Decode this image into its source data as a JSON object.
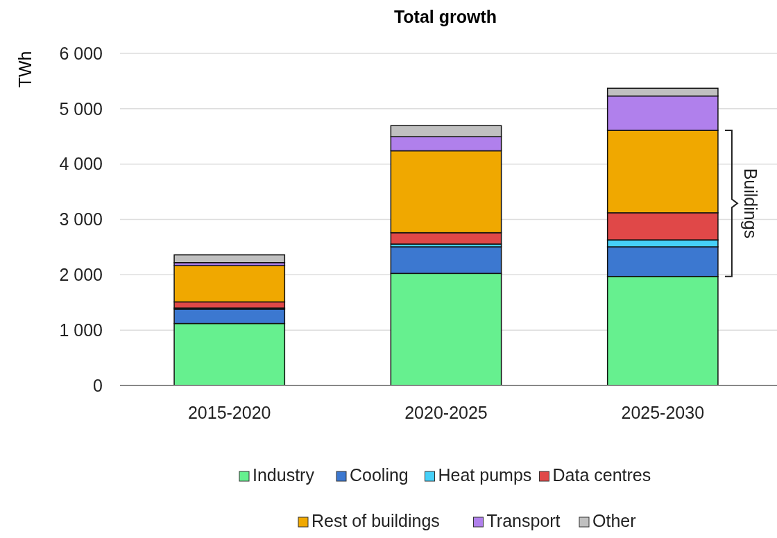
{
  "chart_data": {
    "type": "bar",
    "title": "Total growth",
    "ylabel": "TWh",
    "stacked": true,
    "categories": [
      "2015-2020",
      "2020-2025",
      "2025-2030"
    ],
    "series": [
      {
        "name": "Industry",
        "color": "#66f08f",
        "values": [
          1120,
          2025,
          1970
        ]
      },
      {
        "name": "Cooling",
        "color": "#3c78d0",
        "values": [
          260,
          480,
          535
        ]
      },
      {
        "name": "Heat pumps",
        "color": "#46d0f8",
        "values": [
          20,
          50,
          125
        ]
      },
      {
        "name": "Data centres",
        "color": "#e04848",
        "values": [
          110,
          205,
          490
        ]
      },
      {
        "name": "Rest of buildings",
        "color": "#f0a800",
        "values": [
          655,
          1480,
          1490
        ]
      },
      {
        "name": "Transport",
        "color": "#b080ec",
        "values": [
          55,
          255,
          620
        ]
      },
      {
        "name": "Other",
        "color": "#c0c0c0",
        "values": [
          140,
          200,
          140
        ]
      }
    ],
    "ylim": [
      0,
      6000
    ],
    "yticks": [
      0,
      {
        "value": 1000,
        "label": "1 000"
      },
      {
        "value": 2000,
        "label": "2 000"
      },
      {
        "value": 3000,
        "label": "3 000"
      },
      {
        "value": 4000,
        "label": "4 000"
      },
      {
        "value": 5000,
        "label": "5 000"
      },
      {
        "value": 6000,
        "label": "6 000"
      }
    ],
    "grid": "y",
    "legend": "bottom",
    "annotations": [
      "Buildings"
    ]
  }
}
